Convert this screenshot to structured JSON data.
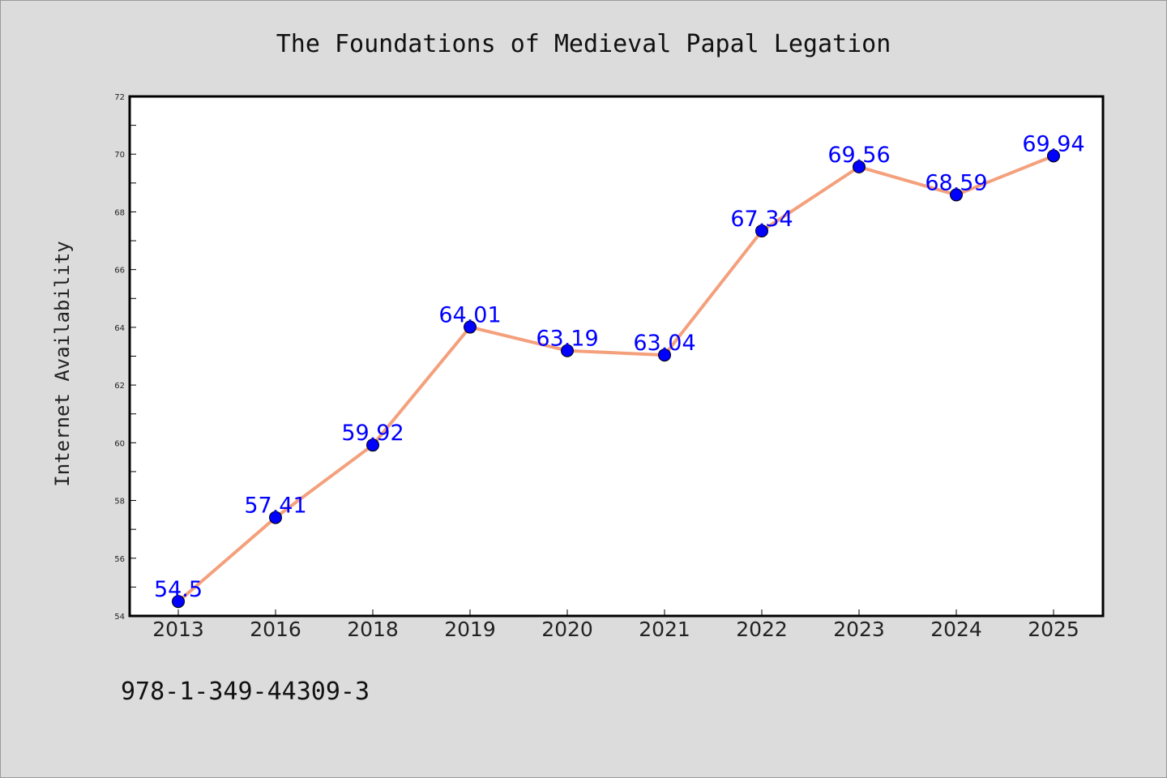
{
  "chart_data": {
    "type": "line",
    "title": "The Foundations of Medieval Papal Legation",
    "xlabel": "",
    "ylabel": "Internet Availability",
    "categories": [
      "2013",
      "2016",
      "2018",
      "2019",
      "2020",
      "2021",
      "2022",
      "2023",
      "2024",
      "2025"
    ],
    "series": [
      {
        "values": [
          54.5,
          57.41,
          59.92,
          64.01,
          63.19,
          63.04,
          67.34,
          69.56,
          68.59,
          69.94
        ],
        "labels": [
          "54.5",
          "57.41",
          "59.92",
          "64.01",
          "63.19",
          "63.04",
          "67.34",
          "69.56",
          "68.59",
          "69.94"
        ],
        "line_color": "#f4a07c",
        "marker_color": "#0000ff"
      }
    ],
    "ylim": [
      54,
      72
    ],
    "yticks": [
      "54",
      "56",
      "58",
      "60",
      "62",
      "64",
      "66",
      "68",
      "70",
      "72"
    ],
    "grid": false,
    "legend": "none"
  },
  "footer": {
    "isbn": "978-1-349-44309-3"
  },
  "colors": {
    "background": "#dcdcdc",
    "plot_background": "#ffffff",
    "line": "#f4a07c",
    "marker": "#0000ff",
    "data_label": "#0000ff"
  }
}
